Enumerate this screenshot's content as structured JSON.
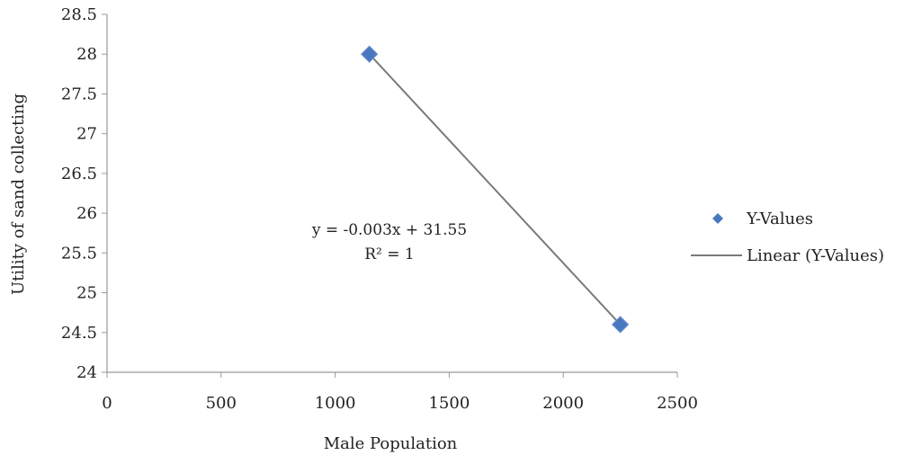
{
  "chart_data": {
    "type": "scatter",
    "xlabel": "Male Population",
    "ylabel": "Utility of sand collecting",
    "xlim": [
      0,
      2500
    ],
    "ylim": [
      24,
      28.5
    ],
    "x_ticks": [
      "0",
      "500",
      "1000",
      "1500",
      "2000",
      "2500"
    ],
    "y_ticks": [
      "24",
      "24.5",
      "25",
      "25.5",
      "26",
      "26.5",
      "27",
      "27.5",
      "28",
      "28.5"
    ],
    "grid": false,
    "legend_position": "right",
    "series": [
      {
        "name": "Y-Values",
        "marker": "diamond",
        "color": "#4a78c0",
        "points": [
          [
            1150,
            28.0
          ],
          [
            2250,
            24.6
          ]
        ]
      }
    ],
    "trendline": {
      "name": "Linear (Y-Values)",
      "color": "#7a7a7a",
      "equation": "y = -0.003x + 31.55",
      "r_squared": "R² = 1"
    }
  }
}
